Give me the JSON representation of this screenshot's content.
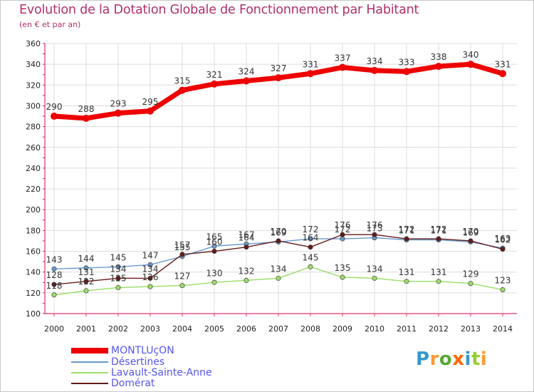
{
  "chart_data": {
    "type": "line",
    "title": "Evolution de la Dotation Globale de Fonctionnement par Habitant",
    "subtitle": "(en € et par an)",
    "xlabel": "",
    "ylabel": "",
    "categories": [
      "2000",
      "2001",
      "2002",
      "2003",
      "2004",
      "2005",
      "2006",
      "2007",
      "2008",
      "2009",
      "2010",
      "2011",
      "2012",
      "2013",
      "2014"
    ],
    "ylim": [
      100,
      360
    ],
    "yticks": [
      "100",
      "120",
      "140",
      "160",
      "180",
      "200",
      "220",
      "240",
      "260",
      "280",
      "300",
      "320",
      "340",
      "360"
    ],
    "grid": true,
    "legend_position": "bottom-left",
    "series": [
      {
        "name": "MONTLUçON",
        "color": "#ee0000",
        "values": [
          290,
          288,
          293,
          295,
          315,
          321,
          324,
          327,
          331,
          337,
          334,
          333,
          338,
          340,
          331
        ]
      },
      {
        "name": "Désertines",
        "color": "#6699cc",
        "values": [
          143,
          144,
          145,
          147,
          155,
          165,
          167,
          169,
          172,
          172,
          173,
          171,
          171,
          169,
          163
        ]
      },
      {
        "name": "Lavault-Sainte-Anne",
        "color": "#99dd66",
        "values": [
          118,
          122,
          125,
          126,
          127,
          130,
          132,
          134,
          145,
          135,
          134,
          131,
          131,
          129,
          123
        ]
      },
      {
        "name": "Domérat",
        "color": "#661a1a",
        "values": [
          128,
          131,
          134,
          134,
          157,
          160,
          164,
          170,
          164,
          176,
          176,
          172,
          172,
          170,
          162
        ]
      }
    ]
  },
  "logo": {
    "text": "Proxiti",
    "colors": [
      "#3399cc",
      "#ff9933",
      "#55aa33",
      "#ff6600",
      "#3399cc",
      "#99cc33",
      "#ff9933"
    ]
  }
}
